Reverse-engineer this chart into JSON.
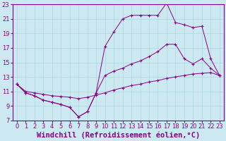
{
  "xlabel": "Windchill (Refroidissement éolien,°C)",
  "bg_color": "#cce8f0",
  "line_color": "#880088",
  "xlim": [
    -0.5,
    23.5
  ],
  "ylim": [
    7,
    23
  ],
  "xticks": [
    0,
    1,
    2,
    3,
    4,
    5,
    6,
    7,
    8,
    9,
    10,
    11,
    12,
    13,
    14,
    15,
    16,
    17,
    18,
    19,
    20,
    21,
    22,
    23
  ],
  "yticks": [
    7,
    9,
    11,
    13,
    15,
    17,
    19,
    21,
    23
  ],
  "line1_x": [
    0,
    1,
    2,
    3,
    4,
    5,
    6,
    7,
    8,
    9,
    10,
    11,
    12,
    13,
    14,
    15,
    16,
    17,
    18,
    19,
    20,
    21,
    22,
    23
  ],
  "line1_y": [
    12.0,
    10.8,
    10.4,
    9.8,
    9.5,
    9.2,
    8.8,
    7.5,
    8.2,
    10.8,
    13.2,
    13.8,
    14.2,
    14.8,
    15.2,
    15.8,
    16.5,
    17.5,
    17.5,
    15.5,
    14.8,
    15.5,
    14.2,
    13.2
  ],
  "line2_x": [
    0,
    1,
    2,
    3,
    4,
    5,
    6,
    7,
    8,
    9,
    10,
    11,
    12,
    13,
    14,
    15,
    16,
    17,
    18,
    19,
    20,
    21,
    22,
    23
  ],
  "line2_y": [
    12.0,
    10.8,
    10.4,
    9.8,
    9.5,
    9.2,
    8.8,
    7.5,
    8.2,
    10.8,
    17.2,
    19.2,
    21.0,
    21.5,
    21.5,
    21.5,
    21.5,
    23.2,
    20.5,
    20.2,
    19.8,
    20.0,
    15.5,
    13.2
  ],
  "line3_x": [
    0,
    1,
    2,
    3,
    4,
    5,
    6,
    7,
    8,
    9,
    10,
    11,
    12,
    13,
    14,
    15,
    16,
    17,
    18,
    19,
    20,
    21,
    22,
    23
  ],
  "line3_y": [
    12.0,
    11.0,
    10.8,
    10.6,
    10.4,
    10.3,
    10.2,
    10.0,
    10.2,
    10.5,
    10.8,
    11.2,
    11.5,
    11.8,
    12.0,
    12.3,
    12.5,
    12.8,
    13.0,
    13.2,
    13.4,
    13.5,
    13.6,
    13.2
  ],
  "grid_color": "#aad8e0",
  "tick_fontsize": 6.0,
  "xlabel_fontsize": 7.5
}
